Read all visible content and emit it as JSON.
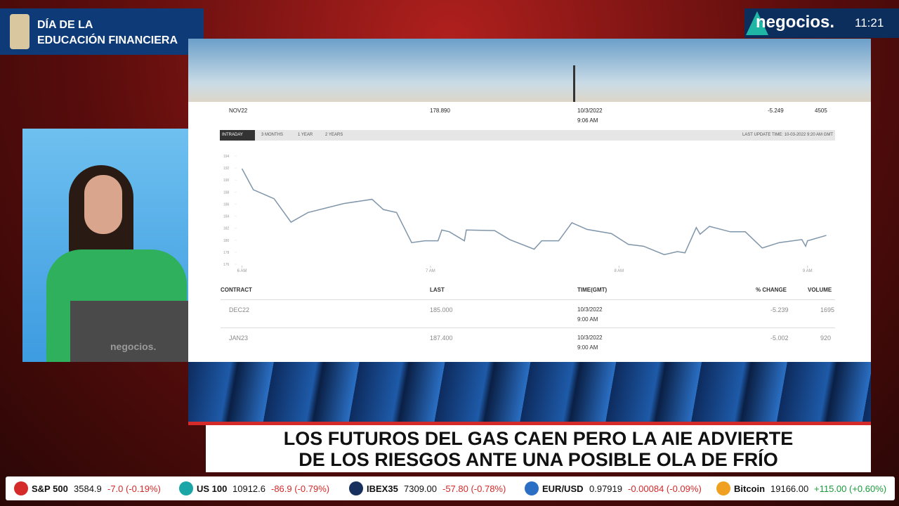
{
  "badge": {
    "line1": "DÍA DE LA",
    "line2": "EDUCACIÓN FINANCIERA"
  },
  "channel": {
    "logo": "negocios.",
    "time": "11:21"
  },
  "presenter": {
    "laptop_logo": "negocios."
  },
  "screen": {
    "top_row": {
      "contract": "NOV22",
      "last": "178.890",
      "date": "10/3/2022",
      "time": "9:06 AM",
      "change": "-5.249",
      "volume": "4505"
    },
    "tabs": [
      "INTRADAY",
      "3 MONTHS",
      "1 YEAR",
      "2 YEARS"
    ],
    "last_update": "LAST UPDATE TIME: 10-03-2022 9:20 AM GMT",
    "chart": {
      "type": "line",
      "color": "#7f95aa",
      "x": [
        6.0,
        6.06,
        6.17,
        6.26,
        6.35,
        6.54,
        6.69,
        6.75,
        6.82,
        6.9,
        6.97,
        7.04,
        7.06,
        7.1,
        7.18,
        7.19,
        7.34,
        7.42,
        7.55,
        7.59,
        7.68,
        7.75,
        7.83,
        7.96,
        8.05,
        8.13,
        8.24,
        8.31,
        8.35,
        8.41,
        8.43,
        8.48,
        8.59,
        8.67,
        8.76,
        8.85,
        8.97,
        8.99,
        9.0,
        9.1
      ],
      "values": [
        191.9,
        188.4,
        186.9,
        183.0,
        184.6,
        186.1,
        186.8,
        185.1,
        184.6,
        179.6,
        179.9,
        179.9,
        181.7,
        181.4,
        179.9,
        181.7,
        181.6,
        180.1,
        178.5,
        179.9,
        179.9,
        182.9,
        181.8,
        181.1,
        179.3,
        179.0,
        177.6,
        178.1,
        177.9,
        182.1,
        181.0,
        182.3,
        181.4,
        181.4,
        178.7,
        179.6,
        180.1,
        179.0,
        179.9,
        180.8
      ],
      "xlim": [
        5.89,
        9.15
      ],
      "xticks": [
        {
          "value": 6,
          "label": "6 AM"
        },
        {
          "value": 7,
          "label": "7 AM"
        },
        {
          "value": 8,
          "label": "8 AM"
        },
        {
          "value": 9,
          "label": "9 AM"
        }
      ],
      "ylim": [
        176,
        194
      ],
      "yticks": [
        176,
        178,
        180,
        182,
        184,
        186,
        188,
        190,
        192,
        194
      ]
    },
    "table": {
      "header": [
        "CONTRACT",
        "LAST",
        "TIME(GMT)",
        "% CHANGE",
        "VOLUME"
      ],
      "rows": [
        [
          "DEC22",
          "185.000",
          "10/3/2022",
          "9:00 AM",
          "-5.239",
          "1695"
        ],
        [
          "JAN23",
          "187.400",
          "10/3/2022",
          "9:00 AM",
          "-5.002",
          "920"
        ]
      ]
    }
  },
  "headline": {
    "line1": "LOS FUTUROS DEL GAS CAEN PERO LA AIE ADVIERTE",
    "line2": "DE LOS RIESGOS ANTE UNA POSIBLE OLA DE FRÍO"
  },
  "ticker": {
    "items": [
      {
        "name": "S&P 500",
        "value": "3584.9",
        "change": "-7.0 (-0.19%)"
      },
      {
        "name": "US 100",
        "value": "10912.6",
        "change": "-86.9 (-0.79%)"
      },
      {
        "name": "IBEX35",
        "value": "7309.00",
        "change": "-57.80 (-0.78%)"
      },
      {
        "name": "EUR/USD",
        "value": "0.97919",
        "change": "-0.00084 (-0.09%)"
      },
      {
        "name": "Bitcoin",
        "value": "19166.00",
        "change": "+115.00 (+0.60%)"
      }
    ]
  }
}
